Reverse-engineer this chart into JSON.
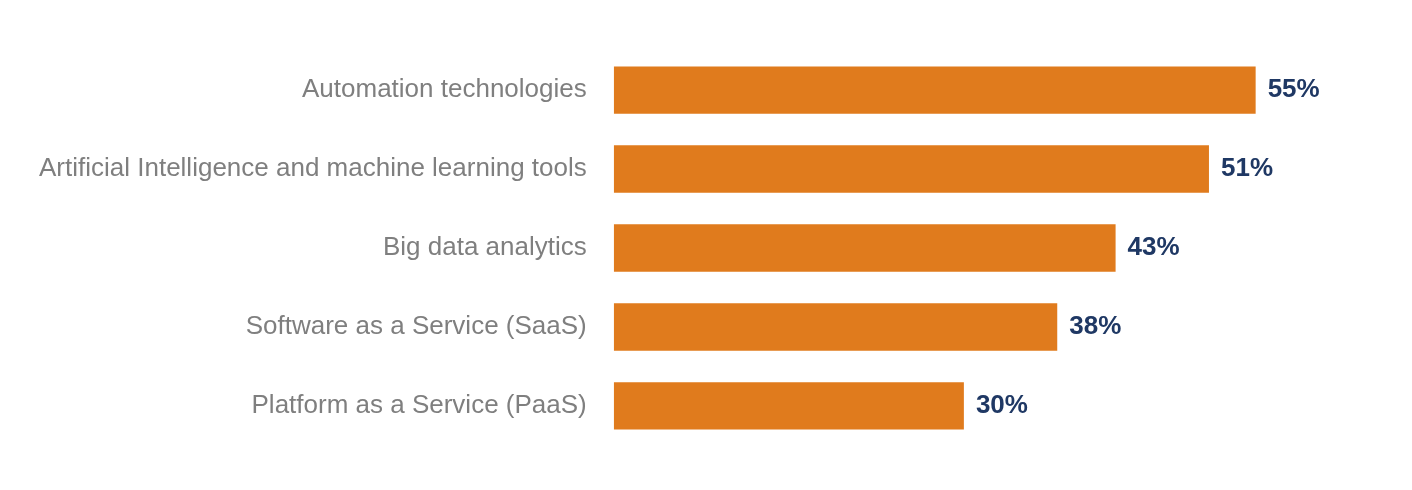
{
  "chart_data": {
    "type": "bar",
    "orientation": "horizontal",
    "categories": [
      "Automation technologies",
      "Artificial Intelligence and machine learning tools",
      "Big data analytics",
      "Software as a Service (SaaS)",
      "Platform as a Service (PaaS)"
    ],
    "values": [
      55,
      51,
      43,
      38,
      30
    ],
    "value_labels": [
      "55%",
      "51%",
      "43%",
      "38%",
      "30%"
    ],
    "color": "#e07b1d",
    "tick_labels": "y"
  }
}
